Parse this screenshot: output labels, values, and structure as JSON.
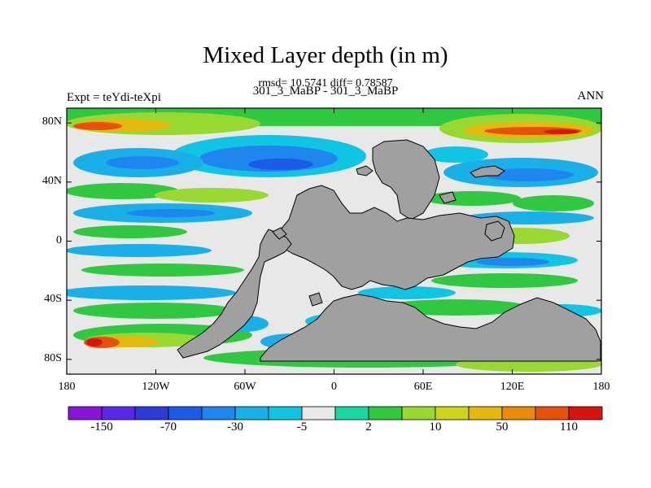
{
  "figure": {
    "title": "Mixed Layer depth (in m)",
    "stats_line": "rmsd= 10.5741 diff= 0.78587",
    "experiments_line": "301_3_MaBP - 301_3_MaBP",
    "expt_label": "Expt = teYdi-teXpi",
    "season": "ANN"
  },
  "chart_data": {
    "type": "heatmap",
    "title": "Mixed Layer depth (in m)",
    "units": "m",
    "xlabel": "",
    "ylabel": "",
    "x_range": [
      -180,
      180
    ],
    "y_range": [
      -90,
      90
    ],
    "x_ticks": [
      {
        "value": -180,
        "label": "180"
      },
      {
        "value": -120,
        "label": "120W"
      },
      {
        "value": -60,
        "label": "60W"
      },
      {
        "value": 0,
        "label": "0"
      },
      {
        "value": 60,
        "label": "60E"
      },
      {
        "value": 120,
        "label": "120E"
      },
      {
        "value": 180,
        "label": "180"
      }
    ],
    "y_ticks": [
      {
        "value": 80,
        "label": "80N"
      },
      {
        "value": 40,
        "label": "40N"
      },
      {
        "value": 0,
        "label": "0"
      },
      {
        "value": -40,
        "label": "40S"
      },
      {
        "value": -80,
        "label": "80S"
      }
    ],
    "colorbar": {
      "colors": [
        "#8a14d8",
        "#5a28e8",
        "#2e3ad8",
        "#1d5ae6",
        "#1f86f0",
        "#19b0ea",
        "#10c4e4",
        "#e8e8e8",
        "#18d8a0",
        "#30c840",
        "#98d830",
        "#ccd41c",
        "#e4b80c",
        "#ea8a0a",
        "#e6520c",
        "#d81410"
      ],
      "labels": [
        {
          "after_box": 1,
          "text": "-150"
        },
        {
          "after_box": 3,
          "text": "-70"
        },
        {
          "after_box": 5,
          "text": "-30"
        },
        {
          "after_box": 7,
          "text": "-5"
        },
        {
          "after_box": 9,
          "text": "2"
        },
        {
          "after_box": 11,
          "text": "10"
        },
        {
          "after_box": 13,
          "text": "50"
        },
        {
          "after_box": 15,
          "text": "110"
        }
      ]
    },
    "land_color": "#a0a0a0",
    "field_samples": [
      {
        "lon": -170,
        "lat": 80,
        "value": 80
      },
      {
        "lon": 140,
        "lat": 78,
        "value": 110
      },
      {
        "lon": -90,
        "lat": 62,
        "value": -30
      },
      {
        "lon": -40,
        "lat": 52,
        "value": -70
      },
      {
        "lon": -160,
        "lat": 10,
        "value": 5
      },
      {
        "lon": -120,
        "lat": 20,
        "value": -30
      },
      {
        "lon": 150,
        "lat": 40,
        "value": -30
      },
      {
        "lon": 100,
        "lat": 30,
        "value": 10
      },
      {
        "lon": 110,
        "lat": -15,
        "value": -15
      },
      {
        "lon": -120,
        "lat": -40,
        "value": 10
      },
      {
        "lon": -160,
        "lat": -72,
        "value": 150
      },
      {
        "lon": -60,
        "lat": -60,
        "value": 20
      },
      {
        "lon": 80,
        "lat": -55,
        "value": -5
      }
    ]
  }
}
